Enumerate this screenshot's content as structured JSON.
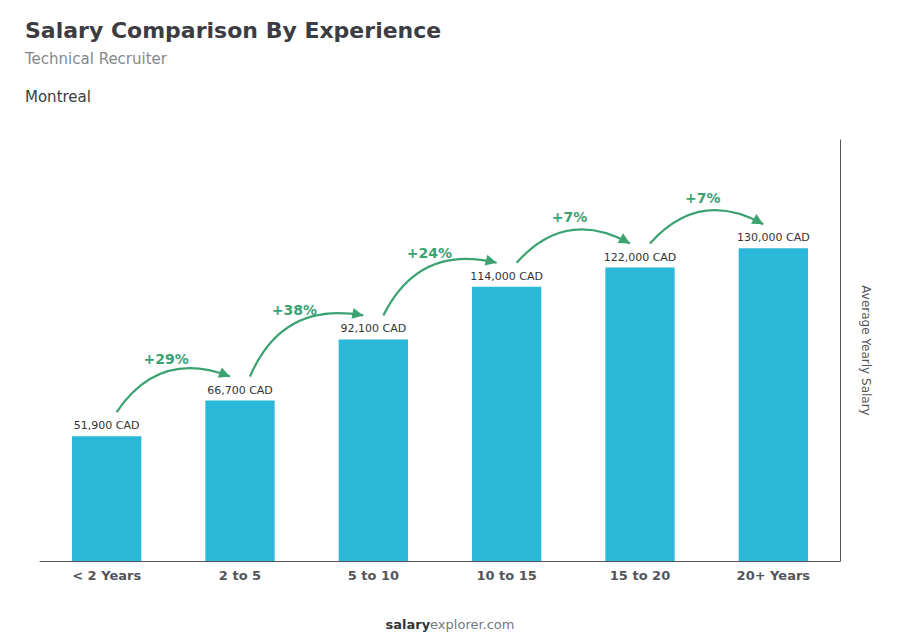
{
  "chart_data": {
    "type": "bar",
    "title": "Salary Comparison By Experience",
    "subtitle": "Technical Recruiter",
    "location": "Montreal",
    "ylabel": "Average Yearly Salary",
    "footer": [
      "salary",
      "explorer.com"
    ],
    "categories": [
      "< 2 Years",
      "2 to 5",
      "5 to 10",
      "10 to 15",
      "15 to 20",
      "20+ Years"
    ],
    "values": [
      51900,
      66700,
      92100,
      114000,
      122000,
      130000
    ],
    "value_labels": [
      "51,900 CAD",
      "66,700 CAD",
      "92,100 CAD",
      "114,000 CAD",
      "122,000 CAD",
      "130,000 CAD"
    ],
    "data_labels": true,
    "annotations": [
      "+29%",
      "+38%",
      "+24%",
      "+7%",
      "+7%"
    ],
    "color": "#29B8D8",
    "ylim": [
      0,
      175000
    ],
    "grid": false,
    "tick_labels": "x"
  }
}
